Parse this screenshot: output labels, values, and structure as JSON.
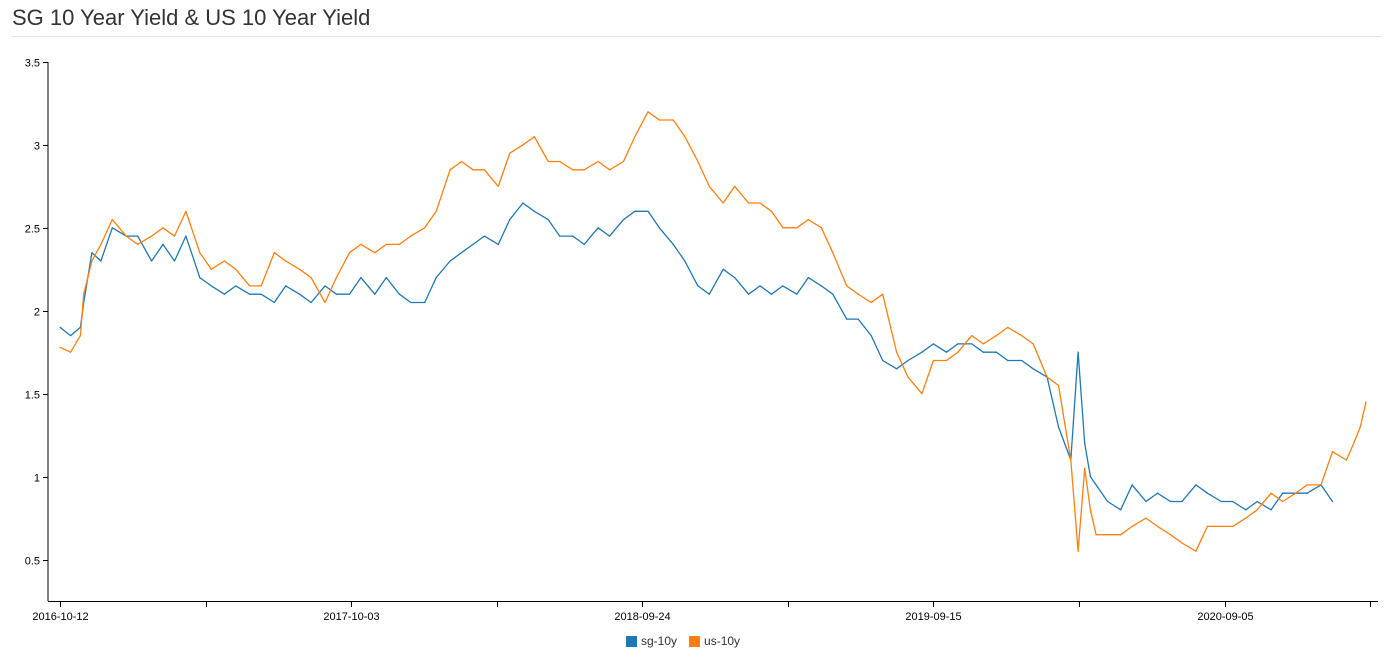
{
  "title": "SG 10 Year Yield & US 10 Year Yield",
  "colors": {
    "sg": "#1f77b4",
    "us": "#ff7f0e"
  },
  "chart_data": {
    "type": "line",
    "title": "SG 10 Year Yield & US 10 Year Yield",
    "xlabel": "",
    "ylabel": "",
    "x_range": [
      "2016-10-12",
      "2021-02-25"
    ],
    "ylim": [
      0.25,
      3.5
    ],
    "y_ticks": [
      0.5,
      1,
      1.5,
      2,
      2.5,
      3,
      3.5
    ],
    "y_tick_labels": [
      "0.5",
      "1",
      "1.5",
      "2",
      "2.5",
      "3",
      "3.5"
    ],
    "x_ticks": [
      "2016-10-12",
      "2017-04-08",
      "2017-10-03",
      "2018-03-30",
      "2018-09-24",
      "2019-03-21",
      "2019-09-15",
      "2020-03-11",
      "2020-09-05",
      "2021-03-02"
    ],
    "x_tick_labels": [
      "2016-10-12",
      "",
      "2017-10-03",
      "",
      "2018-09-24",
      "",
      "2019-09-15",
      "",
      "2020-09-05",
      ""
    ],
    "grid": false,
    "legend": "bottom-center",
    "series": [
      {
        "name": "sg-10y",
        "color": "#1f77b4",
        "x": [
          "2016-10-12",
          "2016-10-25",
          "2016-11-06",
          "2016-11-10",
          "2016-11-20",
          "2016-12-01",
          "2016-12-15",
          "2017-01-01",
          "2017-01-15",
          "2017-02-01",
          "2017-02-15",
          "2017-03-01",
          "2017-03-15",
          "2017-04-01",
          "2017-04-15",
          "2017-05-01",
          "2017-05-15",
          "2017-06-01",
          "2017-06-15",
          "2017-07-01",
          "2017-07-15",
          "2017-08-01",
          "2017-08-15",
          "2017-09-01",
          "2017-09-15",
          "2017-10-01",
          "2017-10-15",
          "2017-11-01",
          "2017-11-15",
          "2017-12-01",
          "2017-12-15",
          "2018-01-01",
          "2018-01-15",
          "2018-02-01",
          "2018-02-15",
          "2018-03-01",
          "2018-03-15",
          "2018-04-01",
          "2018-04-15",
          "2018-05-01",
          "2018-05-15",
          "2018-06-01",
          "2018-06-15",
          "2018-07-01",
          "2018-07-15",
          "2018-08-01",
          "2018-08-15",
          "2018-09-01",
          "2018-09-15",
          "2018-10-01",
          "2018-10-15",
          "2018-11-01",
          "2018-11-15",
          "2018-12-01",
          "2018-12-15",
          "2019-01-01",
          "2019-01-15",
          "2019-02-01",
          "2019-02-15",
          "2019-03-01",
          "2019-03-15",
          "2019-04-01",
          "2019-04-15",
          "2019-05-01",
          "2019-05-15",
          "2019-06-01",
          "2019-06-15",
          "2019-07-01",
          "2019-07-15",
          "2019-08-01",
          "2019-08-15",
          "2019-09-01",
          "2019-09-15",
          "2019-10-01",
          "2019-10-15",
          "2019-11-01",
          "2019-11-15",
          "2019-12-01",
          "2019-12-15",
          "2020-01-01",
          "2020-01-15",
          "2020-02-01",
          "2020-02-15",
          "2020-03-01",
          "2020-03-10",
          "2020-03-18",
          "2020-03-25",
          "2020-04-01",
          "2020-04-15",
          "2020-05-01",
          "2020-05-15",
          "2020-06-01",
          "2020-06-15",
          "2020-07-01",
          "2020-07-15",
          "2020-08-01",
          "2020-08-15",
          "2020-09-01",
          "2020-09-15",
          "2020-10-01",
          "2020-10-15",
          "2020-11-01",
          "2020-11-15",
          "2020-12-01",
          "2020-12-15",
          "2021-01-01",
          "2021-01-15"
        ],
        "y": [
          1.9,
          1.85,
          1.9,
          2.05,
          2.35,
          2.3,
          2.5,
          2.45,
          2.45,
          2.3,
          2.4,
          2.3,
          2.45,
          2.2,
          2.15,
          2.1,
          2.15,
          2.1,
          2.1,
          2.05,
          2.15,
          2.1,
          2.05,
          2.15,
          2.1,
          2.1,
          2.2,
          2.1,
          2.2,
          2.1,
          2.05,
          2.05,
          2.2,
          2.3,
          2.35,
          2.4,
          2.45,
          2.4,
          2.55,
          2.65,
          2.6,
          2.55,
          2.45,
          2.45,
          2.4,
          2.5,
          2.45,
          2.55,
          2.6,
          2.6,
          2.5,
          2.4,
          2.3,
          2.15,
          2.1,
          2.25,
          2.2,
          2.1,
          2.15,
          2.1,
          2.15,
          2.1,
          2.2,
          2.15,
          2.1,
          1.95,
          1.95,
          1.85,
          1.7,
          1.65,
          1.7,
          1.75,
          1.8,
          1.75,
          1.8,
          1.8,
          1.75,
          1.75,
          1.7,
          1.7,
          1.65,
          1.6,
          1.3,
          1.1,
          1.75,
          1.2,
          1.0,
          0.95,
          0.85,
          0.8,
          0.95,
          0.85,
          0.9,
          0.85,
          0.85,
          0.95,
          0.9,
          0.85,
          0.85,
          0.8,
          0.85,
          0.8,
          0.9,
          0.9,
          0.9,
          0.95,
          0.85
        ]
      },
      {
        "name": "us-10y",
        "color": "#ff7f0e",
        "x": [
          "2016-10-12",
          "2016-10-25",
          "2016-11-06",
          "2016-11-10",
          "2016-11-20",
          "2016-12-01",
          "2016-12-15",
          "2017-01-01",
          "2017-01-15",
          "2017-02-01",
          "2017-02-15",
          "2017-03-01",
          "2017-03-15",
          "2017-04-01",
          "2017-04-15",
          "2017-05-01",
          "2017-05-15",
          "2017-06-01",
          "2017-06-15",
          "2017-07-01",
          "2017-07-15",
          "2017-08-01",
          "2017-08-15",
          "2017-09-01",
          "2017-09-15",
          "2017-10-01",
          "2017-10-15",
          "2017-11-01",
          "2017-11-15",
          "2017-12-01",
          "2017-12-15",
          "2018-01-01",
          "2018-01-15",
          "2018-02-01",
          "2018-02-15",
          "2018-03-01",
          "2018-03-15",
          "2018-04-01",
          "2018-04-15",
          "2018-05-01",
          "2018-05-15",
          "2018-06-01",
          "2018-06-15",
          "2018-07-01",
          "2018-07-15",
          "2018-08-01",
          "2018-08-15",
          "2018-09-01",
          "2018-09-15",
          "2018-10-01",
          "2018-10-15",
          "2018-11-01",
          "2018-11-15",
          "2018-12-01",
          "2018-12-15",
          "2019-01-01",
          "2019-01-15",
          "2019-02-01",
          "2019-02-15",
          "2019-03-01",
          "2019-03-15",
          "2019-04-01",
          "2019-04-15",
          "2019-05-01",
          "2019-05-15",
          "2019-06-01",
          "2019-06-15",
          "2019-07-01",
          "2019-07-15",
          "2019-08-01",
          "2019-08-15",
          "2019-09-01",
          "2019-09-15",
          "2019-10-01",
          "2019-10-15",
          "2019-11-01",
          "2019-11-15",
          "2019-12-01",
          "2019-12-15",
          "2020-01-01",
          "2020-01-15",
          "2020-02-01",
          "2020-02-15",
          "2020-03-01",
          "2020-03-10",
          "2020-03-18",
          "2020-03-25",
          "2020-04-01",
          "2020-04-15",
          "2020-05-01",
          "2020-05-15",
          "2020-06-01",
          "2020-06-15",
          "2020-07-01",
          "2020-07-15",
          "2020-08-01",
          "2020-08-15",
          "2020-09-01",
          "2020-09-15",
          "2020-10-01",
          "2020-10-15",
          "2020-11-01",
          "2020-11-15",
          "2020-12-01",
          "2020-12-15",
          "2021-01-01",
          "2021-01-15",
          "2021-02-01",
          "2021-02-10",
          "2021-02-18",
          "2021-02-25"
        ],
        "y": [
          1.78,
          1.75,
          1.85,
          2.1,
          2.3,
          2.4,
          2.55,
          2.45,
          2.4,
          2.45,
          2.5,
          2.45,
          2.6,
          2.35,
          2.25,
          2.3,
          2.25,
          2.15,
          2.15,
          2.35,
          2.3,
          2.25,
          2.2,
          2.05,
          2.2,
          2.35,
          2.4,
          2.35,
          2.4,
          2.4,
          2.45,
          2.5,
          2.6,
          2.85,
          2.9,
          2.85,
          2.85,
          2.75,
          2.95,
          3.0,
          3.05,
          2.9,
          2.9,
          2.85,
          2.85,
          2.9,
          2.85,
          2.9,
          3.05,
          3.2,
          3.15,
          3.15,
          3.05,
          2.9,
          2.75,
          2.65,
          2.75,
          2.65,
          2.65,
          2.6,
          2.5,
          2.5,
          2.55,
          2.5,
          2.35,
          2.15,
          2.1,
          2.05,
          2.1,
          1.75,
          1.6,
          1.5,
          1.7,
          1.7,
          1.75,
          1.85,
          1.8,
          1.85,
          1.9,
          1.85,
          1.8,
          1.6,
          1.55,
          1.1,
          0.55,
          1.05,
          0.8,
          0.65,
          0.65,
          0.65,
          0.7,
          0.75,
          0.7,
          0.65,
          0.6,
          0.55,
          0.7,
          0.7,
          0.7,
          0.75,
          0.8,
          0.9,
          0.85,
          0.9,
          0.95,
          0.95,
          1.15,
          1.1,
          1.2,
          1.3,
          1.45
        ]
      }
    ]
  },
  "legend": {
    "items": [
      {
        "label": "sg-10y",
        "color": "#1f77b4"
      },
      {
        "label": "us-10y",
        "color": "#ff7f0e"
      }
    ]
  }
}
